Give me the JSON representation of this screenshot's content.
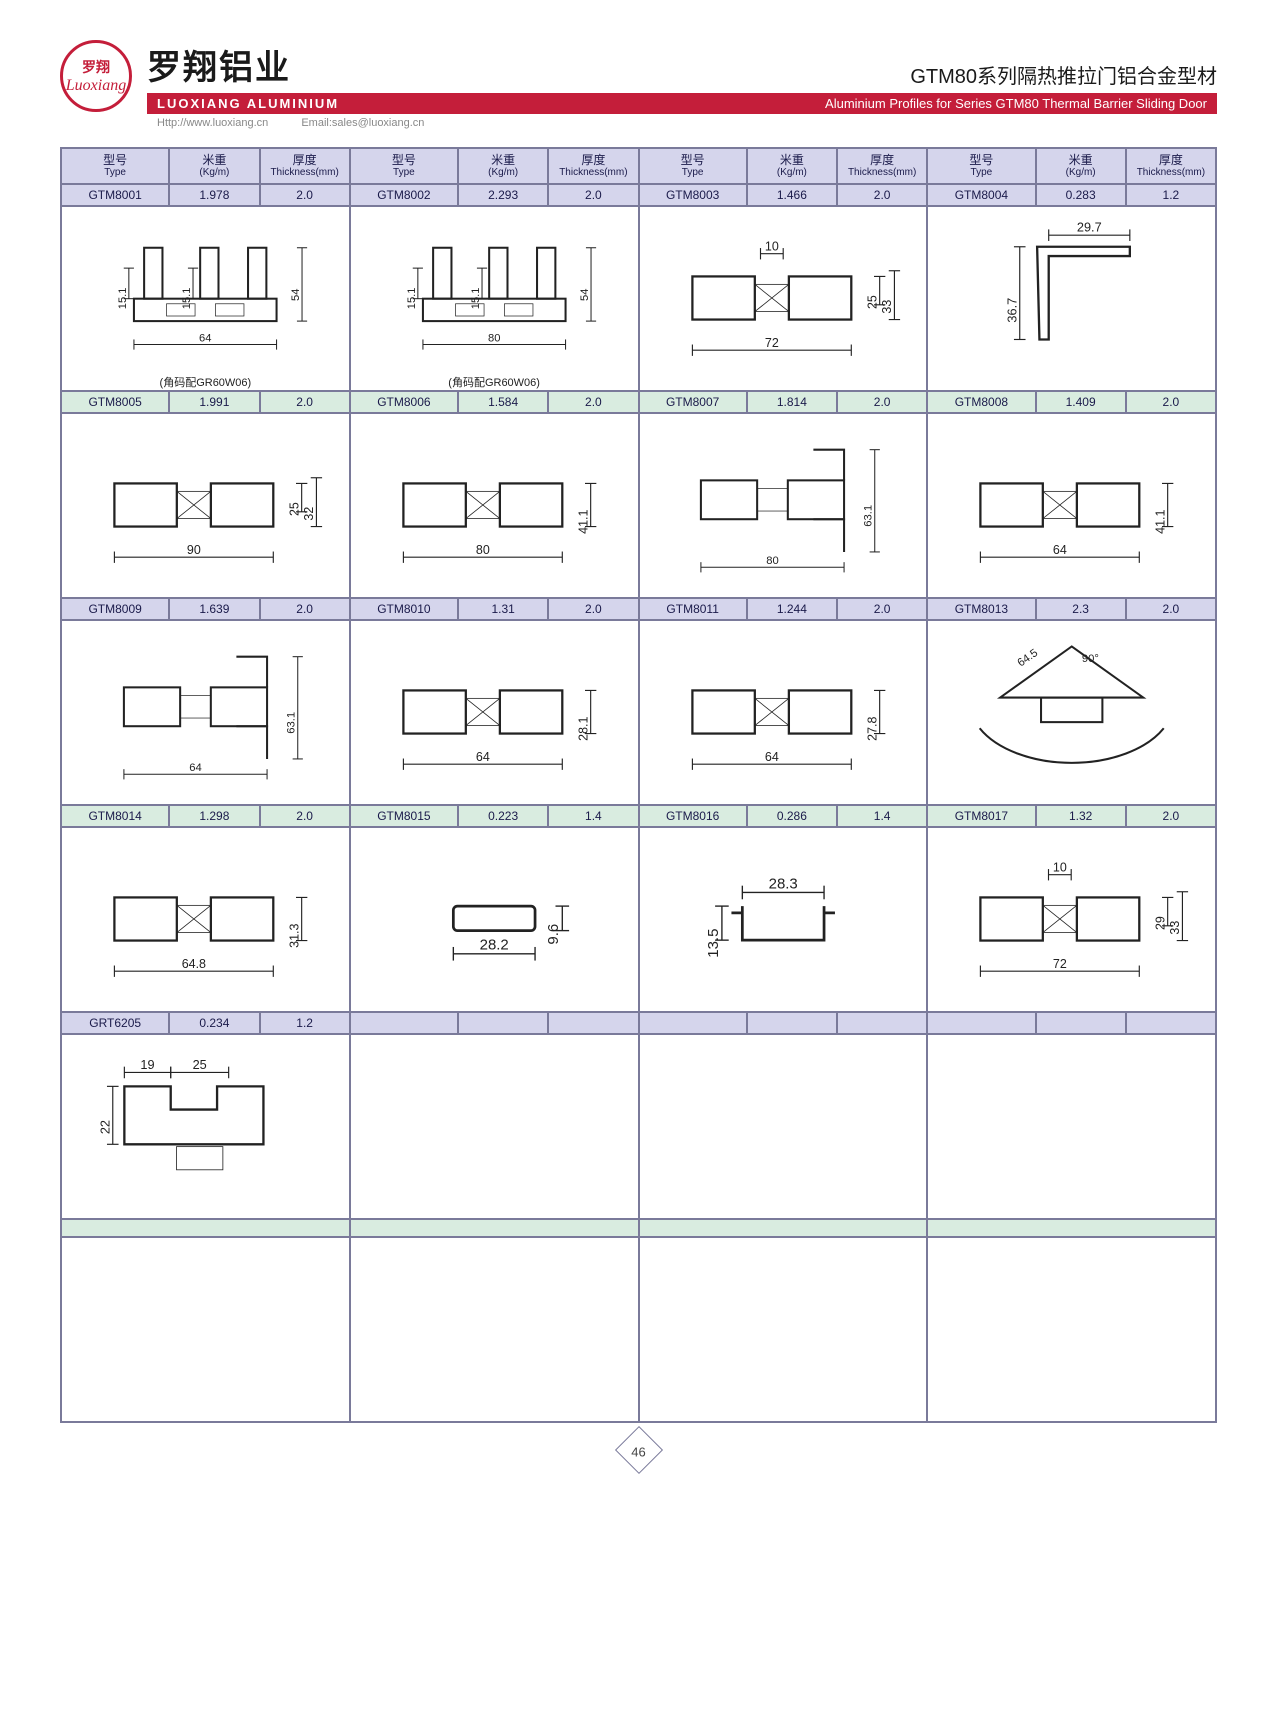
{
  "brand": {
    "logo_cn": "罗翔",
    "logo_en": "Luoxiang",
    "company_cn": "罗翔铝业",
    "company_en": "LUOXIANG ALUMINIUM",
    "website": "Http://www.luoxiang.cn",
    "email": "Email:sales@luoxiang.cn"
  },
  "series": {
    "title_cn": "GTM80系列隔热推拉门铝合金型材",
    "title_en": "Aluminium Profiles for Series GTM80 Thermal Barrier Sliding Door"
  },
  "columns": {
    "type_cn": "型号",
    "type_en": "Type",
    "weight_cn": "米重",
    "weight_en": "(Kg/m)",
    "thick_cn": "厚度",
    "thick_en": "Thickness(mm)"
  },
  "row_colors": {
    "a": "#d5d5ec",
    "b": "#d9ece0"
  },
  "border_color": "#7a7a9a",
  "accent_color": "#c41e3a",
  "rows": [
    {
      "alt": "a",
      "items": [
        {
          "type": "GTM8001",
          "weight": "1.978",
          "thick": "2.0",
          "dims": {
            "w": "64",
            "h": "54",
            "a": "15.1",
            "b": "15.1"
          },
          "note": "(角码配GR60W06)"
        },
        {
          "type": "GTM8002",
          "weight": "2.293",
          "thick": "2.0",
          "dims": {
            "w": "80",
            "h": "54",
            "a": "15.1",
            "b": "15.1"
          },
          "note": "(角码配GR60W06)"
        },
        {
          "type": "GTM8003",
          "weight": "1.466",
          "thick": "2.0",
          "dims": {
            "w": "72",
            "h1": "25",
            "h2": "33",
            "top": "10"
          }
        },
        {
          "type": "GTM8004",
          "weight": "0.283",
          "thick": "1.2",
          "dims": {
            "w": "29.7",
            "h": "36.7"
          }
        }
      ]
    },
    {
      "alt": "b",
      "items": [
        {
          "type": "GTM8005",
          "weight": "1.991",
          "thick": "2.0",
          "dims": {
            "w": "90",
            "h1": "25",
            "h2": "32"
          }
        },
        {
          "type": "GTM8006",
          "weight": "1.584",
          "thick": "2.0",
          "dims": {
            "w": "80",
            "h": "41.1"
          }
        },
        {
          "type": "GTM8007",
          "weight": "1.814",
          "thick": "2.0",
          "dims": {
            "w": "80",
            "h": "63.1"
          }
        },
        {
          "type": "GTM8008",
          "weight": "1.409",
          "thick": "2.0",
          "dims": {
            "w": "64",
            "h": "41.1"
          }
        }
      ]
    },
    {
      "alt": "a",
      "items": [
        {
          "type": "GTM8009",
          "weight": "1.639",
          "thick": "2.0",
          "dims": {
            "w": "64",
            "h": "63.1"
          }
        },
        {
          "type": "GTM8010",
          "weight": "1.31",
          "thick": "2.0",
          "dims": {
            "w": "64",
            "h": "28.1"
          }
        },
        {
          "type": "GTM8011",
          "weight": "1.244",
          "thick": "2.0",
          "dims": {
            "w": "64",
            "h": "27.8"
          }
        },
        {
          "type": "GTM8013",
          "weight": "2.3",
          "thick": "2.0",
          "dims": {
            "r": "64.5",
            "ang": "90°"
          }
        }
      ]
    },
    {
      "alt": "b",
      "items": [
        {
          "type": "GTM8014",
          "weight": "1.298",
          "thick": "2.0",
          "dims": {
            "w": "64.8",
            "h": "31.3"
          }
        },
        {
          "type": "GTM8015",
          "weight": "0.223",
          "thick": "1.4",
          "dims": {
            "w": "28.2",
            "h": "9.6"
          }
        },
        {
          "type": "GTM8016",
          "weight": "0.286",
          "thick": "1.4",
          "dims": {
            "w": "28.3",
            "h": "13.5"
          }
        },
        {
          "type": "GTM8017",
          "weight": "1.32",
          "thick": "2.0",
          "dims": {
            "w": "72",
            "top": "10",
            "h1": "29",
            "h2": "33"
          }
        }
      ]
    },
    {
      "alt": "a",
      "items": [
        {
          "type": "GRT6205",
          "weight": "0.234",
          "thick": "1.2",
          "dims": {
            "a": "19",
            "b": "25",
            "h": "22"
          }
        },
        {
          "empty": true
        },
        {
          "empty": true
        },
        {
          "empty": true
        }
      ]
    },
    {
      "alt": "b",
      "items": [
        {
          "empty": true,
          "nohead": true
        },
        {
          "empty": true,
          "nohead": true
        },
        {
          "empty": true,
          "nohead": true
        },
        {
          "empty": true,
          "nohead": true
        }
      ]
    }
  ],
  "page_number": "46"
}
